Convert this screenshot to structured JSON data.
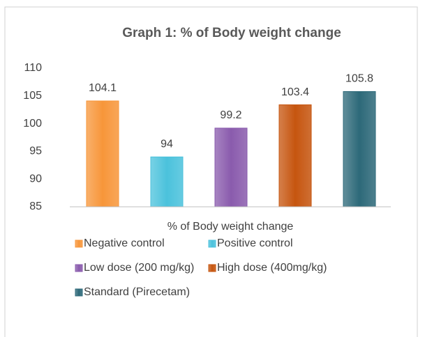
{
  "chart_data": {
    "type": "bar",
    "title": "Graph 1: % of Body weight change",
    "categories": [
      "% of Body weight change"
    ],
    "series": [
      {
        "name": "Negative control",
        "color": "#f7963a",
        "values": [
          104.1
        ]
      },
      {
        "name": "Positive control",
        "color": "#4bc2dc",
        "values": [
          94
        ]
      },
      {
        "name": "Low dose (200 mg/kg)",
        "color": "#8a5bad",
        "values": [
          99.2
        ]
      },
      {
        "name": "High dose (400mg/kg)",
        "color": "#c6550f",
        "values": [
          103.4
        ]
      },
      {
        "name": "Standard (Pirecetam)",
        "color": "#2d6979",
        "values": [
          105.8
        ]
      }
    ],
    "ylim": [
      85,
      110
    ],
    "yticks": [
      85,
      90,
      95,
      100,
      105,
      110
    ],
    "grid": false,
    "legend": "bottom"
  }
}
